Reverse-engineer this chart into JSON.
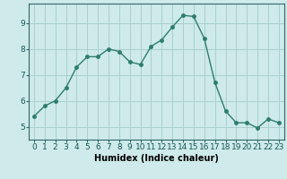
{
  "x": [
    0,
    1,
    2,
    3,
    4,
    5,
    6,
    7,
    8,
    9,
    10,
    11,
    12,
    13,
    14,
    15,
    16,
    17,
    18,
    19,
    20,
    21,
    22,
    23
  ],
  "y": [
    5.4,
    5.8,
    6.0,
    6.5,
    7.3,
    7.7,
    7.7,
    8.0,
    7.9,
    7.5,
    7.4,
    8.1,
    8.35,
    8.85,
    9.3,
    9.25,
    8.4,
    6.7,
    5.6,
    5.15,
    5.15,
    4.95,
    5.3,
    5.15
  ],
  "line_color": "#2e7d6e",
  "marker": "o",
  "marker_size": 2.5,
  "line_width": 1.0,
  "xlabel": "Humidex (Indice chaleur)",
  "xlabel_fontsize": 7,
  "bg_color": "#ceeaea",
  "grid_color": "#aacfcf",
  "xlim": [
    -0.5,
    23.5
  ],
  "ylim": [
    4.5,
    9.75
  ],
  "xticks": [
    0,
    1,
    2,
    3,
    4,
    5,
    6,
    7,
    8,
    9,
    10,
    11,
    12,
    13,
    14,
    15,
    16,
    17,
    18,
    19,
    20,
    21,
    22,
    23
  ],
  "yticks": [
    5,
    6,
    7,
    8,
    9
  ],
  "tick_fontsize": 6.5
}
